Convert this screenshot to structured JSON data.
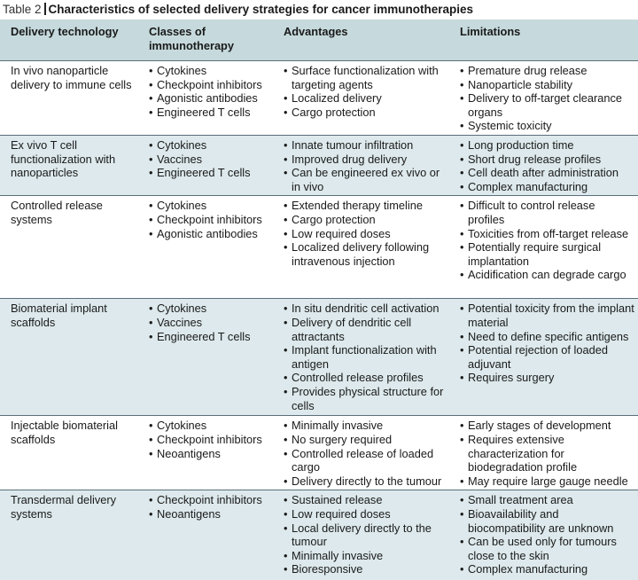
{
  "caption": {
    "label": "Table 2",
    "title": "Characteristics of selected delivery strategies for cancer immunotherapies"
  },
  "table": {
    "header": [
      "Delivery technology",
      "Classes of immunotherapy",
      "Advantages",
      "Limitations"
    ],
    "rows": [
      {
        "technology": "In vivo nanoparticle delivery to immune cells",
        "classes": [
          "Cytokines",
          "Checkpoint inhibitors",
          "Agonistic antibodies",
          "Engineered T cells"
        ],
        "advantages": [
          "Surface functionalization with targeting agents",
          "Localized delivery",
          "Cargo protection"
        ],
        "limitations": [
          "Premature drug release",
          "Nanoparticle stability",
          "Delivery to off-target clearance organs",
          "Systemic toxicity"
        ]
      },
      {
        "technology": "Ex vivo T cell functionalization with nanoparticles",
        "classes": [
          "Cytokines",
          "Vaccines",
          "Engineered T cells"
        ],
        "advantages": [
          "Innate tumour infiltration",
          "Improved drug delivery",
          "Can be engineered ex vivo or in vivo"
        ],
        "limitations": [
          "Long production time",
          "Short drug release profiles",
          "Cell death after administration",
          "Complex manufacturing"
        ]
      },
      {
        "technology": "Controlled release systems",
        "classes": [
          "Cytokines",
          "Checkpoint inhibitors",
          "Agonistic antibodies"
        ],
        "advantages": [
          "Extended therapy timeline",
          "Cargo protection",
          "Low required doses",
          "Localized delivery following intravenous injection"
        ],
        "limitations": [
          "Difficult to control release profiles",
          "Toxicities from off-target release",
          "Potentially require surgical implantation",
          "Acidification can degrade cargo"
        ]
      },
      {
        "technology": "Biomaterial implant scaffolds",
        "classes": [
          "Cytokines",
          "Vaccines",
          "Engineered T cells"
        ],
        "advantages": [
          "In situ dendritic cell activation",
          "Delivery of dendritic cell attractants",
          "Implant functionalization with antigen",
          "Controlled release profiles",
          "Provides physical structure for cells"
        ],
        "limitations": [
          "Potential toxicity from the implant material",
          "Need to define specific antigens",
          "Potential rejection of loaded adjuvant",
          "Requires surgery"
        ]
      },
      {
        "technology": "Injectable biomaterial scaffolds",
        "classes": [
          "Cytokines",
          "Checkpoint inhibitors",
          "Neoantigens"
        ],
        "advantages": [
          "Minimally invasive",
          "No surgery required",
          "Controlled release of loaded cargo",
          "Delivery directly to the tumour"
        ],
        "limitations": [
          "Early stages of development",
          "Requires extensive characterization for biodegradation profile",
          "May require large gauge needle"
        ]
      },
      {
        "technology": "Transdermal delivery systems",
        "classes": [
          "Checkpoint inhibitors",
          "Neoantigens"
        ],
        "advantages": [
          "Sustained release",
          "Low required doses",
          "Local delivery directly to the tumour",
          "Minimally invasive",
          "Bioresponsive"
        ],
        "limitations": [
          "Small treatment area",
          "Bioavailability and biocompatibility are unknown",
          "Can be used only for tumours close to the skin",
          "Complex manufacturing"
        ]
      }
    ]
  }
}
